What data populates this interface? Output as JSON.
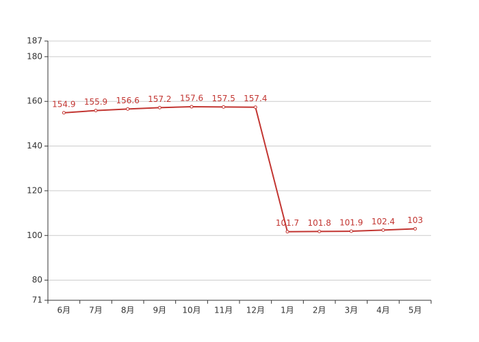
{
  "chart_data": {
    "type": "line",
    "categories": [
      "6月",
      "7月",
      "8月",
      "9月",
      "10月",
      "11月",
      "12月",
      "1月",
      "2月",
      "3月",
      "4月",
      "5月"
    ],
    "values": [
      154.9,
      155.9,
      156.6,
      157.2,
      157.6,
      157.5,
      157.4,
      101.7,
      101.8,
      101.9,
      102.4,
      103
    ],
    "color": "#c23531",
    "ylim": [
      71,
      187
    ],
    "yticks": [
      71,
      80,
      100,
      120,
      140,
      160,
      180,
      187
    ],
    "grid": true
  }
}
